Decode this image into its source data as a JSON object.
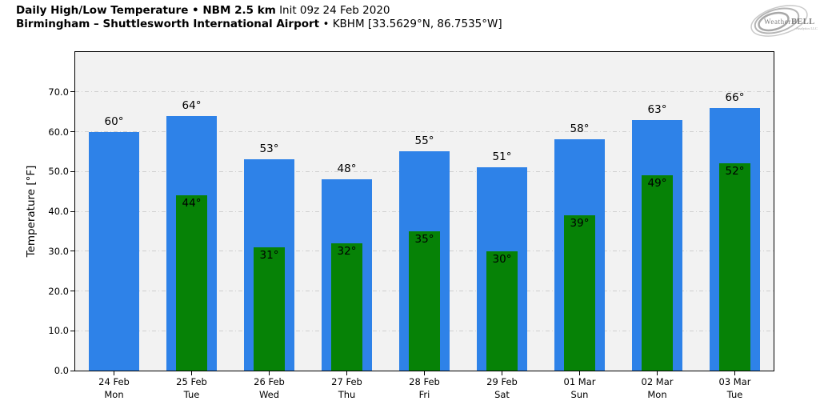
{
  "header": {
    "title_bold": "Daily High/Low Temperature • NBM 2.5 km",
    "title_light": "Init 09z 24 Feb 2020",
    "station_bold": "Birmingham – Shuttlesworth International Airport",
    "station_light": "• KBHM [33.5629°N, 86.7535°W]",
    "logo": {
      "brand_left": "Weather",
      "brand_right": "BELL",
      "sub": "Analytics LLC"
    }
  },
  "chart_data": {
    "type": "bar",
    "title": "Daily High/Low Temperature • NBM 2.5 km Init 09z 24 Feb 2020",
    "subtitle": "Birmingham – Shuttlesworth International Airport • KBHM [33.5629°N, 86.7535°W]",
    "ylabel": "Temperature [°F]",
    "xlabel": "",
    "ylim": [
      0,
      80
    ],
    "yticks": [
      0,
      10,
      20,
      30,
      40,
      50,
      60,
      70
    ],
    "ytick_labels": [
      "0.0",
      "10.0",
      "20.0",
      "30.0",
      "40.0",
      "50.0",
      "60.0",
      "70.0"
    ],
    "grid": {
      "axis": "y",
      "style": "dash-dot",
      "color": "#cfcfcf"
    },
    "plot_background": "#f2f2f2",
    "categories": [
      {
        "date": "24 Feb",
        "day": "Mon"
      },
      {
        "date": "25 Feb",
        "day": "Tue"
      },
      {
        "date": "26 Feb",
        "day": "Wed"
      },
      {
        "date": "27 Feb",
        "day": "Thu"
      },
      {
        "date": "28 Feb",
        "day": "Fri"
      },
      {
        "date": "29 Feb",
        "day": "Sat"
      },
      {
        "date": "01 Mar",
        "day": "Sun"
      },
      {
        "date": "02 Mar",
        "day": "Mon"
      },
      {
        "date": "03 Mar",
        "day": "Tue"
      }
    ],
    "series": [
      {
        "name": "High",
        "color": "#2e82e8",
        "bar_width_frac": 0.65,
        "label_pos": "above",
        "label_suffix": "°",
        "values": [
          60,
          64,
          53,
          48,
          55,
          51,
          58,
          63,
          66
        ]
      },
      {
        "name": "Low",
        "color": "#068206",
        "bar_width_frac": 0.41,
        "label_pos": "inside-top",
        "label_suffix": "°",
        "values": [
          null,
          44,
          31,
          32,
          35,
          30,
          39,
          49,
          52
        ]
      }
    ]
  }
}
